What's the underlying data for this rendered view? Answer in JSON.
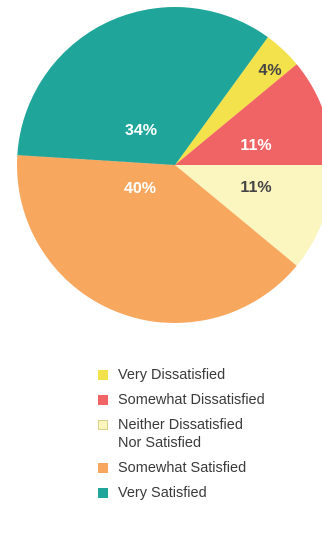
{
  "chart_data": {
    "type": "pie",
    "title": "",
    "slices": [
      {
        "label": "Very Dissatisfied",
        "value": 4,
        "display": "4%",
        "color": "#f4e24c",
        "text_color": "#444444"
      },
      {
        "label": "Somewhat Dissatisfied",
        "value": 11,
        "display": "11%",
        "color": "#f06466",
        "text_color": "#ffffff"
      },
      {
        "label": "Neither Dissatisfied Nor Satisfied",
        "value": 11,
        "display": "11%",
        "color": "#fbf5c0",
        "text_color": "#444444"
      },
      {
        "label": "Somewhat Satisfied",
        "value": 40,
        "display": "40%",
        "color": "#f8a75f",
        "text_color": "#ffffff"
      },
      {
        "label": "Very Satisfied",
        "value": 34,
        "display": "34%",
        "color": "#1fa59a",
        "text_color": "#ffffff"
      }
    ],
    "legend_placement": "bottom"
  },
  "legend": [
    {
      "lines": [
        "Very Dissatisfied"
      ],
      "color": "#f4e24c"
    },
    {
      "lines": [
        "Somewhat Dissatisfied"
      ],
      "color": "#f06466"
    },
    {
      "lines": [
        "Neither Dissatisfied",
        "Nor Satisfied"
      ],
      "color": "#fbf5c0"
    },
    {
      "lines": [
        "Somewhat Satisfied"
      ],
      "color": "#f8a75f"
    },
    {
      "lines": [
        "Very Satisfied"
      ],
      "color": "#1fa59a"
    }
  ]
}
